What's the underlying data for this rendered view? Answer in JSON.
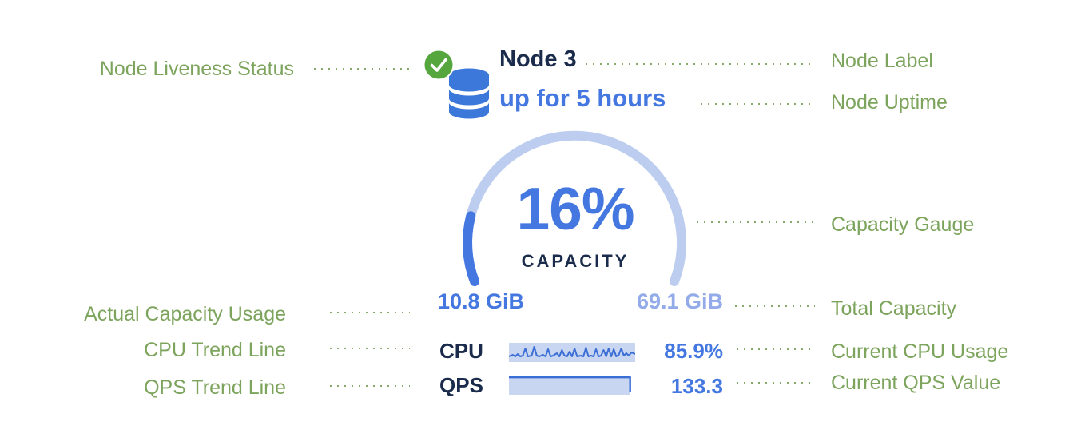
{
  "palette": {
    "annotation_green": "#7ca45c",
    "leader_dot_green": "#86ab68",
    "status_check_green": "#55a63d",
    "primary_blue": "#4478e0",
    "database_blue": "#3b78da",
    "navy_text": "#1b2b4c",
    "gauge_track_blue": "#bccdf0",
    "total_capacity_blue": "#93abe8",
    "sparkline_fill_blue": "#c9d6f1",
    "sparkline_line_blue": "#3c6fd6"
  },
  "annotations": {
    "left": [
      {
        "id": "node-liveness-status",
        "label": "Node Liveness Status"
      },
      {
        "id": "actual-capacity-usage",
        "label": "Actual Capacity Usage"
      },
      {
        "id": "cpu-trend-line",
        "label": "CPU Trend Line"
      },
      {
        "id": "qps-trend-line",
        "label": "QPS Trend Line"
      }
    ],
    "right": [
      {
        "id": "node-label",
        "label": "Node Label"
      },
      {
        "id": "node-uptime",
        "label": "Node Uptime"
      },
      {
        "id": "capacity-gauge",
        "label": "Capacity Gauge"
      },
      {
        "id": "total-capacity",
        "label": "Total Capacity"
      },
      {
        "id": "current-cpu-usage",
        "label": "Current CPU Usage"
      },
      {
        "id": "current-qps-value",
        "label": "Current QPS Value"
      }
    ]
  },
  "node_card": {
    "name": "Node 3",
    "uptime": "up for 5 hours",
    "liveness_status": "healthy",
    "status_icon": "check-circle-icon",
    "type_icon": "database-icon",
    "gauge": {
      "percent": 16,
      "percent_label": "16%",
      "caption": "CAPACITY",
      "used": "10.8 GiB",
      "total": "69.1 GiB"
    },
    "metrics": [
      {
        "label": "CPU",
        "value": "85.9%"
      },
      {
        "label": "QPS",
        "value": "133.3"
      }
    ],
    "cpu_sparkline": [
      [
        0,
        17
      ],
      [
        3,
        15
      ],
      [
        5,
        17
      ],
      [
        7,
        14
      ],
      [
        9,
        17
      ],
      [
        11,
        16
      ],
      [
        13,
        7
      ],
      [
        15,
        17
      ],
      [
        18,
        16
      ],
      [
        20,
        5
      ],
      [
        22,
        16
      ],
      [
        24,
        17
      ],
      [
        27,
        15
      ],
      [
        29,
        17
      ],
      [
        31,
        8
      ],
      [
        33,
        17
      ],
      [
        35,
        16
      ],
      [
        38,
        13
      ],
      [
        40,
        17
      ],
      [
        42,
        9
      ],
      [
        44,
        16
      ],
      [
        46,
        17
      ],
      [
        48,
        11
      ],
      [
        50,
        17
      ],
      [
        52,
        7
      ],
      [
        54,
        17
      ],
      [
        57,
        16
      ],
      [
        59,
        17
      ],
      [
        61,
        6
      ],
      [
        63,
        17
      ],
      [
        65,
        16
      ],
      [
        67,
        17
      ],
      [
        69,
        8
      ],
      [
        71,
        17
      ],
      [
        73,
        16
      ],
      [
        75,
        9
      ],
      [
        77,
        17
      ],
      [
        79,
        7
      ],
      [
        81,
        17
      ],
      [
        83,
        8
      ],
      [
        85,
        17
      ],
      [
        87,
        15
      ],
      [
        89,
        7
      ],
      [
        91,
        16
      ],
      [
        93,
        13
      ],
      [
        95,
        16
      ],
      [
        97,
        12
      ],
      [
        100,
        14
      ]
    ],
    "qps_trend_line": [
      [
        0,
        3
      ],
      [
        96,
        3
      ],
      [
        96,
        21
      ]
    ],
    "qps_trend_area": [
      [
        0,
        3
      ],
      [
        96,
        3
      ],
      [
        96,
        24
      ],
      [
        0,
        24
      ]
    ]
  }
}
